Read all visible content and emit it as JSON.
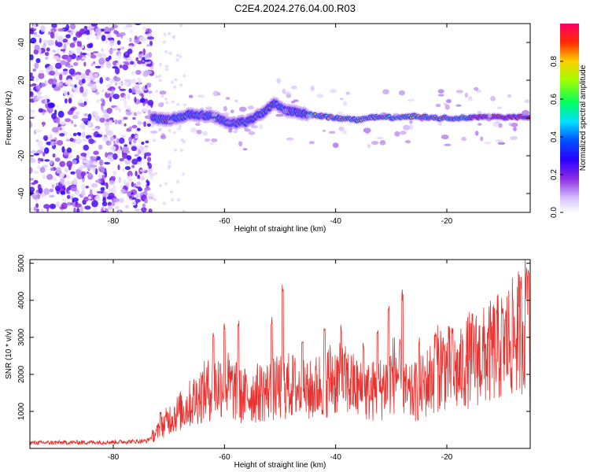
{
  "title": "C2E4.2024.276.04.00.R03",
  "colors": {
    "snr_line": "#e8322f",
    "frame": "#000000",
    "background": "#ffffff"
  },
  "chart_data": [
    {
      "type": "heatmap",
      "title": "C2E4.2024.276.04.00.R03",
      "xlabel": "Height of straight line (km)",
      "ylabel": "Frequency (Hz)",
      "xlim": [
        -95,
        -5
      ],
      "ylim": [
        -50,
        50
      ],
      "xticks": [
        -80,
        -60,
        -40,
        -20
      ],
      "yticks": [
        -40,
        -20,
        0,
        20,
        40
      ],
      "grid": false,
      "colorbar": {
        "label": "Normalized spectral amplitude",
        "range": [
          0,
          1
        ],
        "ticks": [
          0.0,
          0.2,
          0.4,
          0.6,
          0.8
        ],
        "colormap": "rainbow (white-violet-blue-cyan-green-yellow-red-magenta)"
      },
      "description_points": {
        "noise_region_km": [
          -95,
          -73
        ],
        "signal_center_freq_hz": [
          [
            -73,
            0
          ],
          [
            -70,
            -1
          ],
          [
            -66,
            2
          ],
          [
            -62,
            1
          ],
          [
            -59,
            -3
          ],
          [
            -56,
            -2
          ],
          [
            -53,
            3
          ],
          [
            -51,
            8
          ],
          [
            -49,
            4
          ],
          [
            -45,
            2
          ],
          [
            -40,
            0
          ],
          [
            -36,
            -1
          ],
          [
            -32,
            1
          ],
          [
            -29,
            0
          ],
          [
            -26,
            1
          ],
          [
            -22,
            0
          ],
          [
            -18,
            0
          ],
          [
            -15,
            0.5
          ],
          [
            -5,
            0.5
          ]
        ]
      }
    },
    {
      "type": "line",
      "xlabel": "Height of straight line (km)",
      "ylabel": "SNR (10 * v/v)",
      "xlim": [
        -95,
        -5
      ],
      "ylim": [
        0,
        5100
      ],
      "xticks": [
        -80,
        -60,
        -40,
        -20
      ],
      "yticks": [
        1000,
        2000,
        3000,
        4000,
        5000
      ],
      "grid": false,
      "envelope": [
        [
          -95,
          150
        ],
        [
          -80,
          170
        ],
        [
          -74,
          200
        ],
        [
          -72,
          450
        ],
        [
          -70,
          800
        ],
        [
          -67,
          1100
        ],
        [
          -64,
          1500
        ],
        [
          -60,
          1800
        ],
        [
          -57,
          1400
        ],
        [
          -54,
          1500
        ],
        [
          -51,
          1600
        ],
        [
          -48,
          1700
        ],
        [
          -45,
          1500
        ],
        [
          -41,
          1900
        ],
        [
          -38,
          1800
        ],
        [
          -35,
          1500
        ],
        [
          -32,
          1600
        ],
        [
          -29,
          2100
        ],
        [
          -27,
          1400
        ],
        [
          -24,
          1700
        ],
        [
          -21,
          2300
        ],
        [
          -18,
          2000
        ],
        [
          -16,
          2400
        ],
        [
          -13,
          2500
        ],
        [
          -10,
          2800
        ],
        [
          -8,
          3000
        ],
        [
          -6,
          3300
        ],
        [
          -5.5,
          4000
        ],
        [
          -5,
          1000
        ]
      ],
      "spikes": [
        [
          -71.5,
          1000
        ],
        [
          -62,
          3200
        ],
        [
          -60,
          3400
        ],
        [
          -57.5,
          3500
        ],
        [
          -51.5,
          3600
        ],
        [
          -49.5,
          4500
        ],
        [
          -46,
          3100
        ],
        [
          -42,
          3300
        ],
        [
          -39,
          3400
        ],
        [
          -35,
          2900
        ],
        [
          -32.5,
          3300
        ],
        [
          -30.5,
          3900
        ],
        [
          -28,
          4300
        ],
        [
          -25,
          3000
        ],
        [
          -22,
          3200
        ],
        [
          -19,
          3300
        ],
        [
          -10,
          3800
        ],
        [
          -5.6,
          4980
        ],
        [
          -5.3,
          5000
        ]
      ]
    }
  ]
}
